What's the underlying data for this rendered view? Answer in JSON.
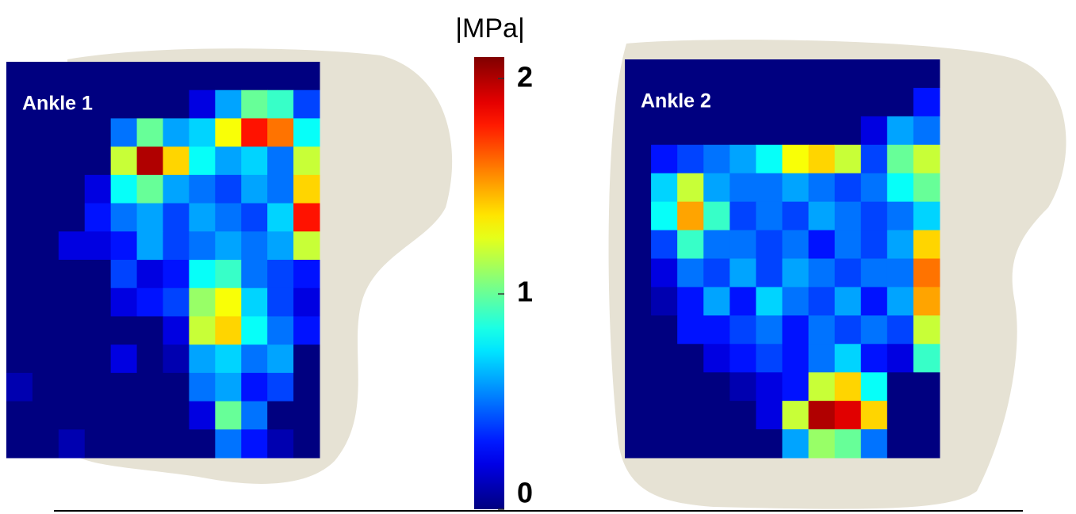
{
  "colorbar": {
    "label": "|MPa|",
    "zlim": [
      0,
      2.1
    ],
    "zticks": [
      0,
      1,
      2
    ],
    "colormap": "jet"
  },
  "chart_data": [
    {
      "type": "heatmap",
      "title": "Ankle 1",
      "values": [
        [
          0,
          0,
          0,
          0,
          0,
          0,
          0,
          0,
          0,
          0,
          0,
          0
        ],
        [
          0,
          0,
          0,
          0,
          0,
          0,
          0,
          0.2,
          0.6,
          1.0,
          0.9,
          0.4
        ],
        [
          0,
          0,
          0,
          0,
          0.5,
          1.0,
          0.6,
          0.7,
          1.3,
          1.8,
          1.6,
          0.8
        ],
        [
          0,
          0,
          0,
          0,
          1.2,
          2.0,
          1.4,
          0.8,
          0.6,
          0.7,
          0.5,
          1.2
        ],
        [
          0,
          0,
          0,
          0.2,
          0.8,
          1.0,
          0.6,
          0.5,
          0.4,
          0.6,
          0.5,
          1.4
        ],
        [
          0,
          0,
          0,
          0.3,
          0.5,
          0.6,
          0.4,
          0.6,
          0.5,
          0.4,
          0.7,
          1.8
        ],
        [
          0,
          0,
          0.2,
          0.2,
          0.3,
          0.6,
          0.4,
          0.5,
          0.6,
          0.5,
          0.6,
          1.2
        ],
        [
          0,
          0,
          0,
          0,
          0.4,
          0.2,
          0.3,
          0.8,
          0.9,
          0.5,
          0.4,
          0.3
        ],
        [
          0,
          0,
          0,
          0,
          0.2,
          0.3,
          0.4,
          1.1,
          1.3,
          0.7,
          0.4,
          0.2
        ],
        [
          0,
          0,
          0,
          0,
          0,
          0,
          0.2,
          1.2,
          1.4,
          0.8,
          0.5,
          0.3
        ],
        [
          0,
          0,
          0,
          0,
          0.2,
          0,
          0.1,
          0.6,
          0.7,
          0.5,
          0.6,
          0
        ],
        [
          0.1,
          0,
          0,
          0,
          0,
          0,
          0,
          0.5,
          0.6,
          0.3,
          0.4,
          0
        ],
        [
          0,
          0,
          0,
          0,
          0,
          0,
          0,
          0.2,
          1.0,
          0.5,
          0,
          0
        ],
        [
          0,
          0,
          0.1,
          0,
          0,
          0,
          0,
          0,
          0.5,
          0.3,
          0.1,
          0
        ]
      ]
    },
    {
      "type": "heatmap",
      "title": "Ankle 2",
      "values": [
        [
          0,
          0,
          0,
          0,
          0,
          0,
          0,
          0,
          0,
          0,
          0,
          0
        ],
        [
          0,
          0,
          0,
          0,
          0,
          0,
          0,
          0,
          0,
          0,
          0,
          0.3
        ],
        [
          0,
          0,
          0,
          0,
          0,
          0,
          0,
          0,
          0,
          0.2,
          0.6,
          0.5
        ],
        [
          0,
          0.3,
          0.4,
          0.5,
          0.6,
          0.8,
          1.3,
          1.4,
          1.2,
          0.4,
          1.0,
          1.2
        ],
        [
          0,
          0.7,
          1.2,
          0.6,
          0.5,
          0.5,
          0.6,
          0.5,
          0.4,
          0.5,
          0.8,
          1.0
        ],
        [
          0,
          0.8,
          1.5,
          0.9,
          0.4,
          0.5,
          0.4,
          0.6,
          0.5,
          0.4,
          0.5,
          0.7
        ],
        [
          0,
          0.4,
          0.9,
          0.5,
          0.5,
          0.4,
          0.5,
          0.3,
          0.5,
          0.4,
          0.6,
          1.4
        ],
        [
          0,
          0.2,
          0.5,
          0.4,
          0.6,
          0.4,
          0.6,
          0.5,
          0.4,
          0.5,
          0.5,
          1.6
        ],
        [
          0,
          0.1,
          0.3,
          0.6,
          0.3,
          0.7,
          0.5,
          0.4,
          0.6,
          0.3,
          0.6,
          1.5
        ],
        [
          0,
          0,
          0.3,
          0.3,
          0.4,
          0.5,
          0.3,
          0.5,
          0.4,
          0.5,
          0.4,
          1.2
        ],
        [
          0,
          0,
          0,
          0.2,
          0.3,
          0.4,
          0.3,
          0.5,
          0.7,
          0.3,
          0.2,
          0.9
        ],
        [
          0,
          0,
          0,
          0,
          0.1,
          0.2,
          0.3,
          1.2,
          1.4,
          0.8,
          0,
          0
        ],
        [
          0,
          0,
          0,
          0,
          0,
          0.2,
          1.2,
          2.0,
          1.9,
          1.4,
          0,
          0
        ],
        [
          0,
          0,
          0,
          0,
          0,
          0,
          0.6,
          1.1,
          1.0,
          0.5,
          0,
          0
        ]
      ]
    }
  ]
}
